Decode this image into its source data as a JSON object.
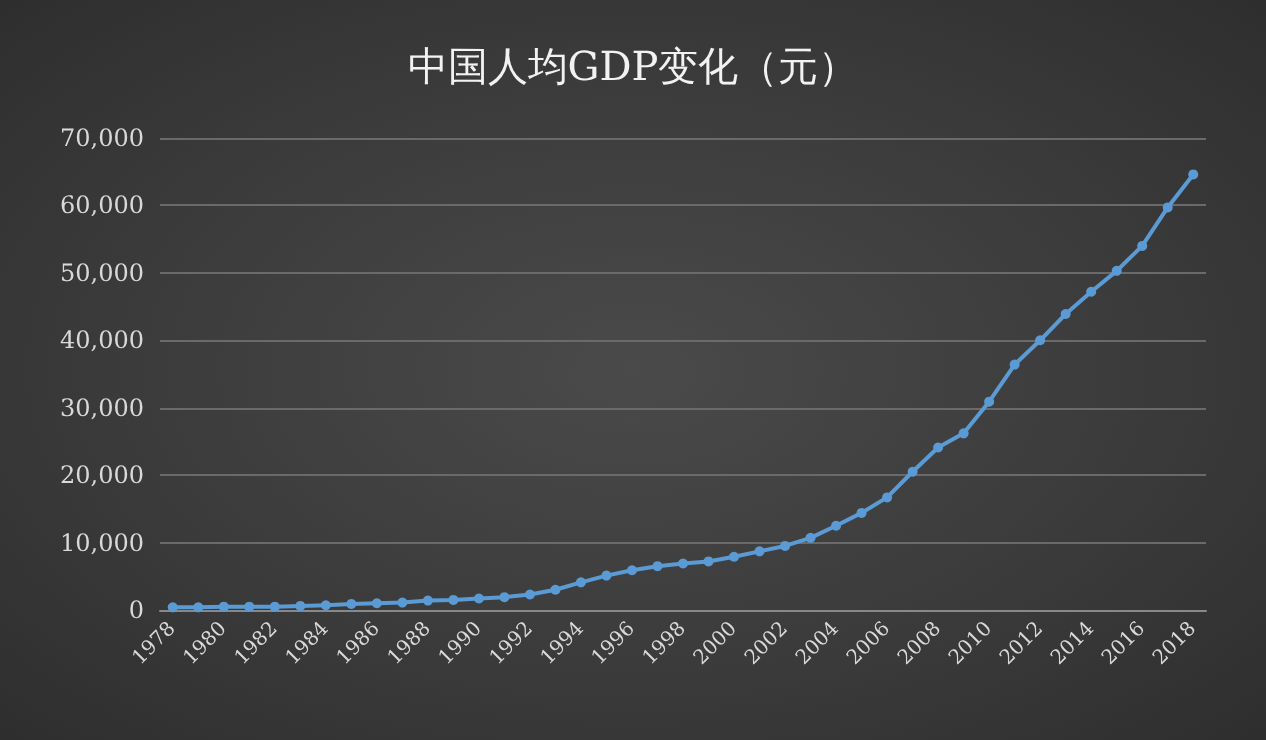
{
  "chart_data": {
    "type": "line",
    "title": "中国人均GDP变化（元）",
    "categories": [
      "1978",
      null,
      "1980",
      null,
      "1982",
      null,
      "1984",
      null,
      "1986",
      null,
      "1988",
      null,
      "1990",
      null,
      "1992",
      null,
      "1994",
      null,
      "1996",
      null,
      "1998",
      null,
      "2000",
      null,
      "2002",
      null,
      "2004",
      null,
      "2006",
      null,
      "2008",
      null,
      "2010",
      null,
      "2012",
      null,
      "2014",
      null,
      "2016",
      null,
      "2018"
    ],
    "series": [
      {
        "color": "#5b9bd5",
        "values": [
          400,
          400,
          500,
          500,
          500,
          600,
          700,
          900,
          1000,
          1100,
          1400,
          1500,
          1700,
          1900,
          2300,
          3000,
          4100,
          5100,
          5900,
          6500,
          6900,
          7200,
          7900,
          8700,
          9500,
          10700,
          12500,
          14400,
          16700,
          20500,
          24100,
          26200,
          30900,
          36400,
          40000,
          43900,
          47200,
          50300,
          54000,
          59700,
          64600
        ]
      }
    ],
    "ylim": [
      0,
      70000
    ],
    "yticks": [
      0,
      {
        "value": 10000,
        "label": "10,000"
      },
      {
        "value": 20000,
        "label": "20,000"
      },
      {
        "value": 30000,
        "label": "30,000"
      },
      {
        "value": 40000,
        "label": "40,000"
      },
      {
        "value": 50000,
        "label": "50,000"
      },
      {
        "value": 60000,
        "label": "60,000"
      },
      {
        "value": 70000,
        "label": "70,000"
      }
    ],
    "grid": "y",
    "marker": "circle",
    "line_style": "solid"
  }
}
